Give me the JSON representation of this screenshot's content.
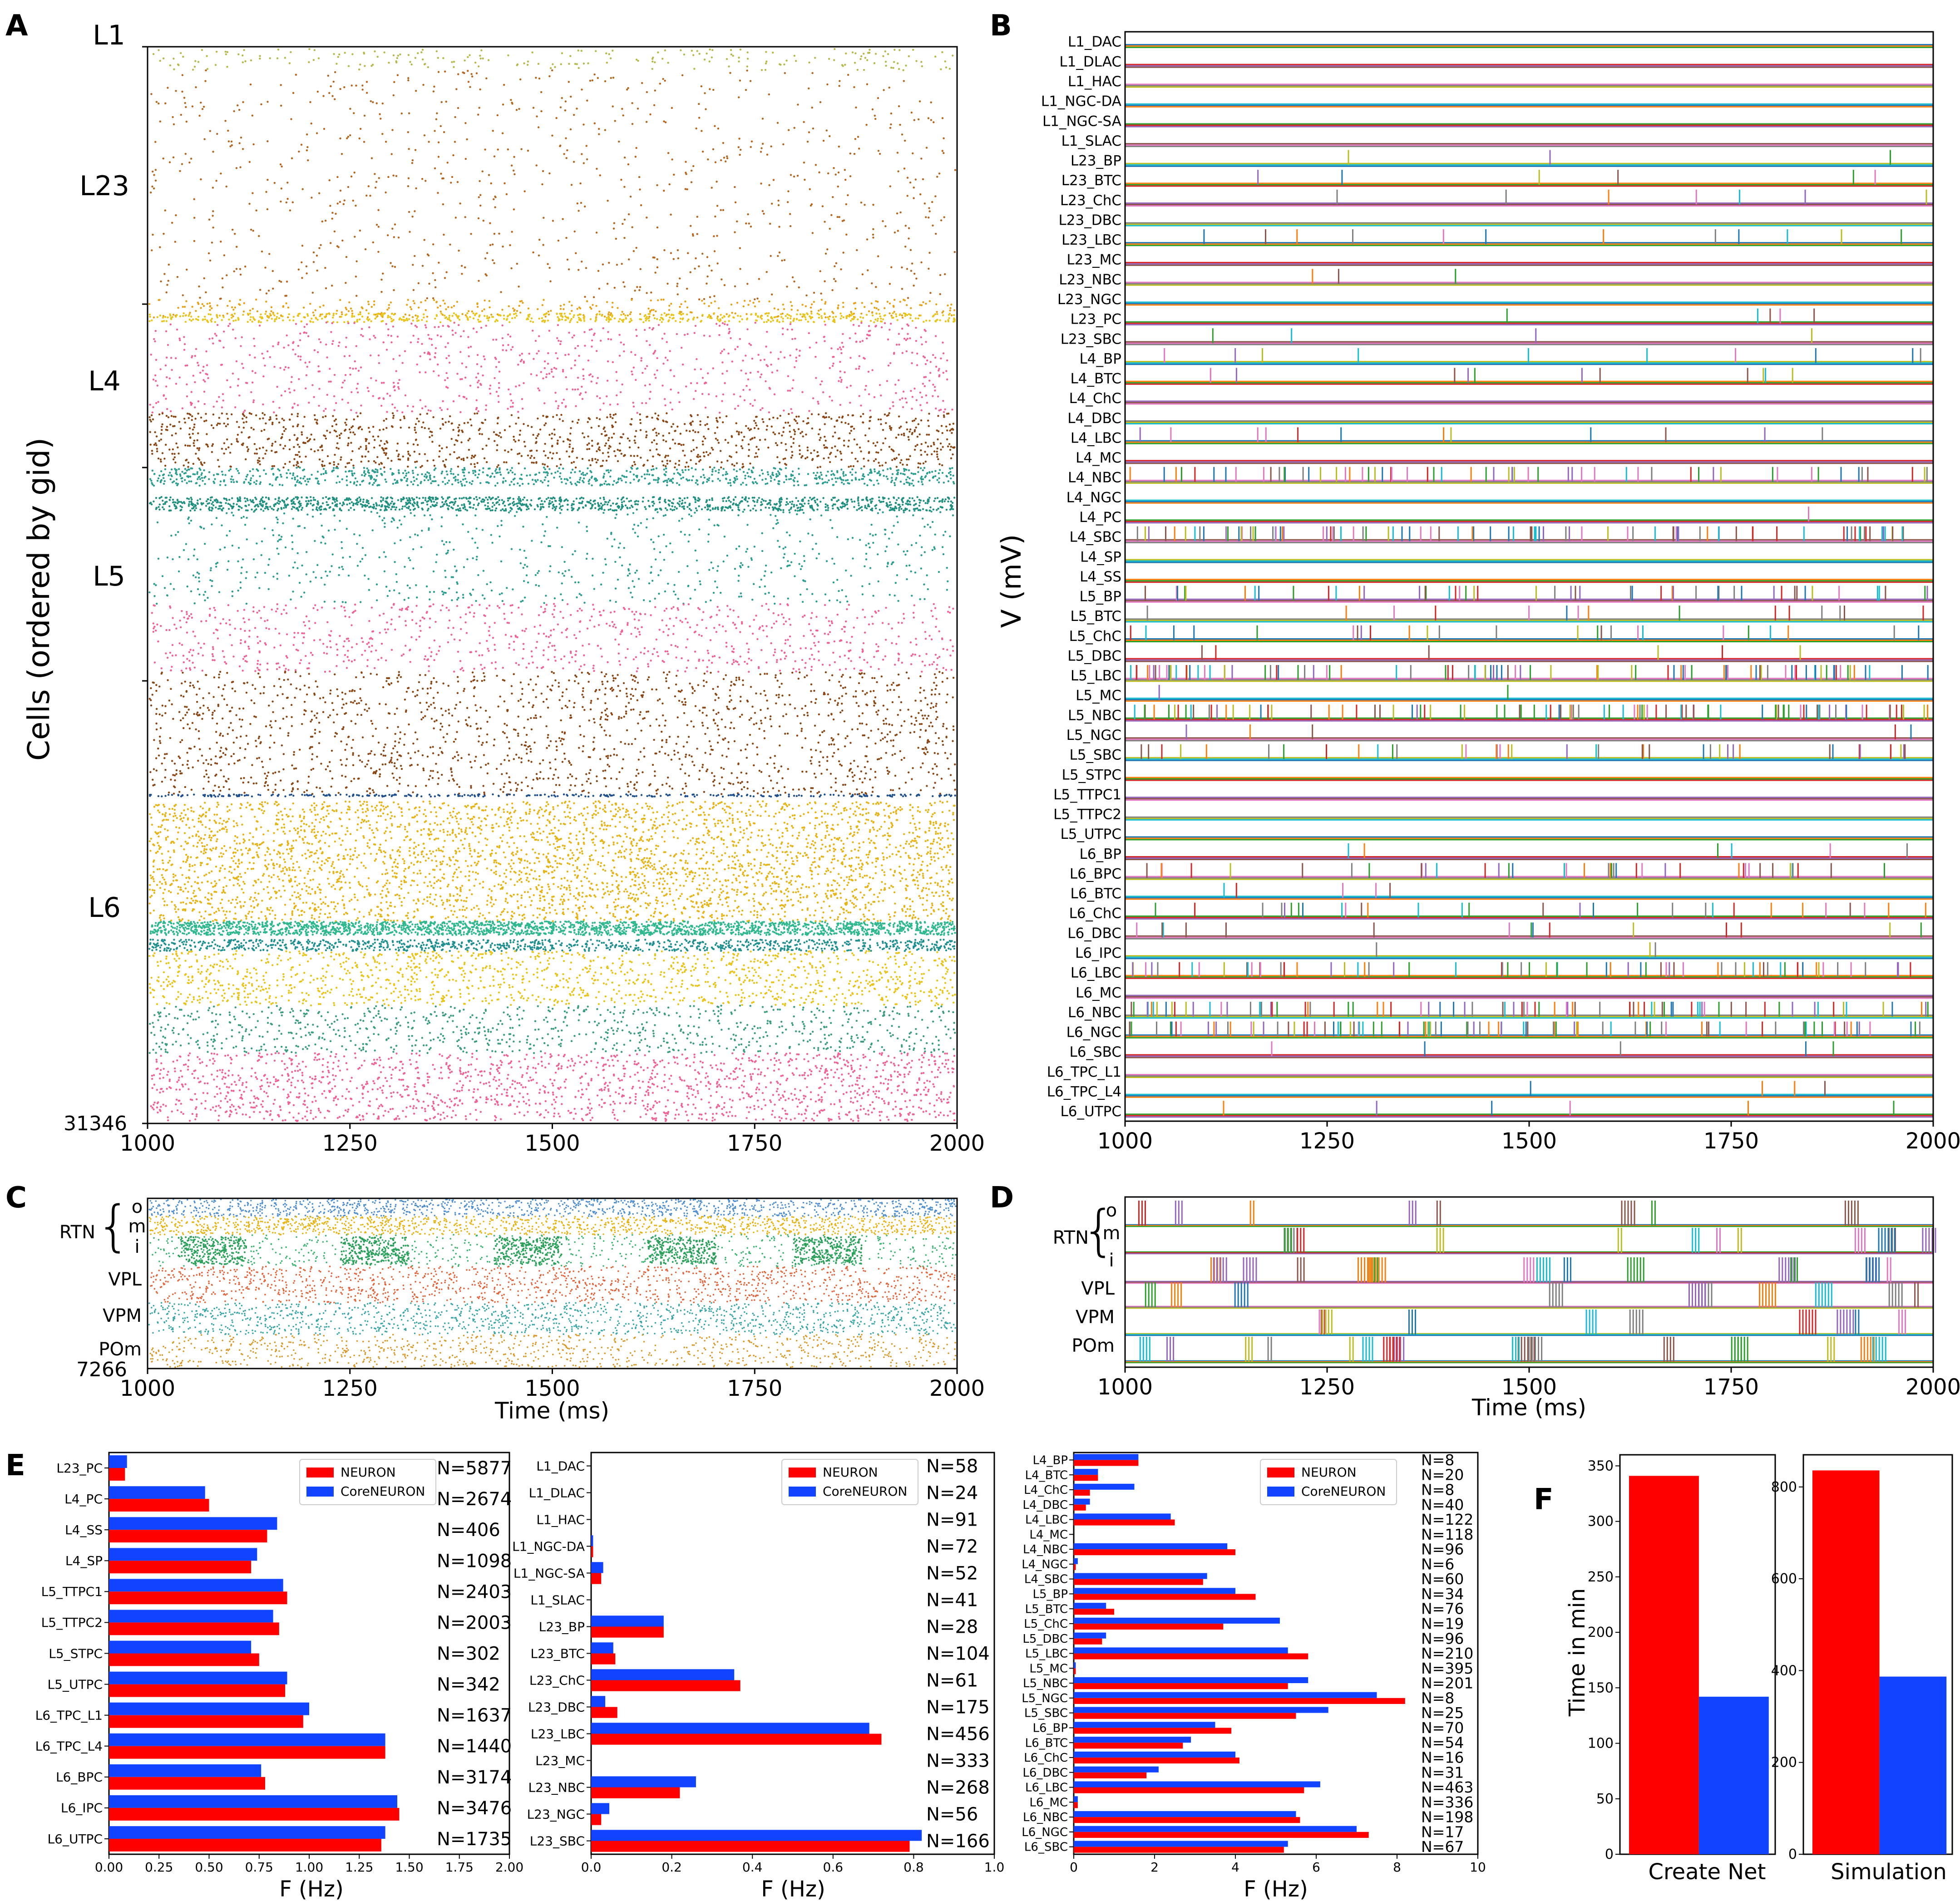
{
  "panel_labels": [
    "A",
    "B",
    "C",
    "D",
    "E",
    "F"
  ],
  "colors": {
    "neuron_red": "#ff0000",
    "coreneuron_blue": "#1144ff",
    "raster_palette": [
      "#b5b84a",
      "#b5651d",
      "#e7a117",
      "#e9c41a",
      "#f06292",
      "#8b4513",
      "#2a9d8f",
      "#1f6f9f",
      "#3cb371",
      "#d4a017",
      "#66bb6a",
      "#e57fa0"
    ],
    "trace_palette": [
      "#1f77b4",
      "#ff7f0e",
      "#2ca02c",
      "#d62728",
      "#9467bd",
      "#8c564b",
      "#e377c2",
      "#7f7f7f",
      "#bcbd22",
      "#17becf"
    ]
  },
  "chart_data": [
    {
      "id": "A",
      "type": "scatter",
      "title": "",
      "xlabel": "",
      "ylabel": "Cells (ordered by gid)",
      "xlim": [
        1000,
        2000
      ],
      "xticks": [
        1000,
        1250,
        1500,
        1750,
        2000
      ],
      "ylim": [
        0,
        31346
      ],
      "ytick_end_label": "31346",
      "layer_labels": [
        "L1",
        "L23",
        "L4",
        "L5",
        "L6"
      ],
      "layer_bounds": [
        0,
        340,
        6900,
        11700,
        22000,
        31346
      ]
    },
    {
      "id": "B",
      "type": "line",
      "ylabel": "V (mV)",
      "xlim": [
        1000,
        2000
      ],
      "xticks": [
        1000,
        1250,
        1500,
        1750,
        2000
      ],
      "categories": [
        "L1_DAC",
        "L1_DLAC",
        "L1_HAC",
        "L1_NGC-DA",
        "L1_NGC-SA",
        "L1_SLAC",
        "L23_BP",
        "L23_BTC",
        "L23_ChC",
        "L23_DBC",
        "L23_LBC",
        "L23_MC",
        "L23_NBC",
        "L23_NGC",
        "L23_PC",
        "L23_SBC",
        "L4_BP",
        "L4_BTC",
        "L4_ChC",
        "L4_DBC",
        "L4_LBC",
        "L4_MC",
        "L4_NBC",
        "L4_NGC",
        "L4_PC",
        "L4_SBC",
        "L4_SP",
        "L4_SS",
        "L5_BP",
        "L5_BTC",
        "L5_ChC",
        "L5_DBC",
        "L5_LBC",
        "L5_MC",
        "L5_NBC",
        "L5_NGC",
        "L5_SBC",
        "L5_STPC",
        "L5_TTPC1",
        "L5_TTPC2",
        "L5_UTPC",
        "L6_BP",
        "L6_BPC",
        "L6_BTC",
        "L6_ChC",
        "L6_DBC",
        "L6_IPC",
        "L6_LBC",
        "L6_MC",
        "L6_NBC",
        "L6_NGC",
        "L6_SBC",
        "L6_TPC_L1",
        "L6_TPC_L4",
        "L6_UTPC"
      ],
      "spike_density": [
        0,
        0,
        0,
        0,
        0,
        0,
        3,
        6,
        7,
        0,
        12,
        0,
        3,
        0,
        5,
        4,
        10,
        11,
        0,
        0,
        12,
        0,
        60,
        0,
        1,
        90,
        0,
        0,
        50,
        15,
        25,
        6,
        90,
        2,
        95,
        5,
        40,
        0,
        0,
        0,
        0,
        6,
        40,
        5,
        30,
        15,
        3,
        70,
        0,
        85,
        95,
        5,
        0,
        4,
        6
      ]
    },
    {
      "id": "C",
      "type": "scatter",
      "xlabel": "Time (ms)",
      "xlim": [
        1000,
        2000
      ],
      "xticks": [
        1000,
        1250,
        1500,
        1750,
        2000
      ],
      "ytick_end_label": "7266",
      "group_labels": [
        "RTN",
        "o",
        "m",
        "i",
        "VPL",
        "VPM",
        "POm"
      ]
    },
    {
      "id": "D",
      "type": "line",
      "xlabel": "Time (ms)",
      "xlim": [
        1000,
        2000
      ],
      "xticks": [
        1000,
        1250,
        1500,
        1750,
        2000
      ],
      "group_labels": [
        "RTN",
        "o",
        "m",
        "i",
        "VPL",
        "VPM",
        "POm"
      ]
    },
    {
      "id": "E1",
      "type": "bar",
      "orientation": "horizontal",
      "xlabel": "F (Hz)",
      "xlim": [
        0,
        2.0
      ],
      "xticks": [
        "0.00",
        "0.25",
        "0.50",
        "0.75",
        "1.00",
        "1.25",
        "1.50",
        "1.75",
        "2.00"
      ],
      "categories": [
        "L23_PC",
        "L4_PC",
        "L4_SS",
        "L4_SP",
        "L5_TTPC1",
        "L5_TTPC2",
        "L5_STPC",
        "L5_UTPC",
        "L6_TPC_L1",
        "L6_TPC_L4",
        "L6_BPC",
        "L6_IPC",
        "L6_UTPC"
      ],
      "counts": [
        "N=5877",
        "N=2674",
        "N=406",
        "N=1098",
        "N=2403",
        "N=2003",
        "N=302",
        "N=342",
        "N=1637",
        "N=1440",
        "N=3174",
        "N=3476",
        "N=1735"
      ],
      "legend": [
        "NEURON",
        "CoreNEURON"
      ],
      "series": [
        {
          "name": "NEURON",
          "values": [
            0.08,
            0.5,
            0.79,
            0.71,
            0.89,
            0.85,
            0.75,
            0.88,
            0.97,
            1.38,
            0.78,
            1.45,
            1.36
          ]
        },
        {
          "name": "CoreNEURON",
          "values": [
            0.09,
            0.48,
            0.84,
            0.74,
            0.87,
            0.82,
            0.71,
            0.89,
            1.0,
            1.38,
            0.76,
            1.44,
            1.38
          ]
        }
      ]
    },
    {
      "id": "E2",
      "type": "bar",
      "orientation": "horizontal",
      "xlabel": "F (Hz)",
      "xlim": [
        0,
        1.0
      ],
      "xticks": [
        "0.0",
        "0.2",
        "0.4",
        "0.6",
        "0.8",
        "1.0"
      ],
      "categories": [
        "L1_DAC",
        "L1_DLAC",
        "L1_HAC",
        "L1_NGC-DA",
        "L1_NGC-SA",
        "L1_SLAC",
        "L23_BP",
        "L23_BTC",
        "L23_ChC",
        "L23_DBC",
        "L23_LBC",
        "L23_MC",
        "L23_NBC",
        "L23_NGC",
        "L23_SBC"
      ],
      "counts": [
        "N=58",
        "N=24",
        "N=91",
        "N=72",
        "N=52",
        "N=41",
        "N=28",
        "N=104",
        "N=61",
        "N=175",
        "N=456",
        "N=333",
        "N=268",
        "N=56",
        "N=166"
      ],
      "legend": [
        "NEURON",
        "CoreNEURON"
      ],
      "series": [
        {
          "name": "NEURON",
          "values": [
            0,
            0,
            0,
            0.005,
            0.025,
            0,
            0.18,
            0.06,
            0.37,
            0.065,
            0.72,
            0,
            0.22,
            0.025,
            0.79
          ]
        },
        {
          "name": "CoreNEURON",
          "values": [
            0,
            0,
            0,
            0.005,
            0.03,
            0,
            0.18,
            0.055,
            0.355,
            0.035,
            0.69,
            0,
            0.26,
            0.045,
            0.82
          ]
        }
      ]
    },
    {
      "id": "E3",
      "type": "bar",
      "orientation": "horizontal",
      "xlabel": "F (Hz)",
      "xlim": [
        0,
        10
      ],
      "xticks": [
        "0",
        "2",
        "4",
        "6",
        "8",
        "10"
      ],
      "categories": [
        "L4_BP",
        "L4_BTC",
        "L4_ChC",
        "L4_DBC",
        "L4_LBC",
        "L4_MC",
        "L4_NBC",
        "L4_NGC",
        "L4_SBC",
        "L5_BP",
        "L5_BTC",
        "L5_ChC",
        "L5_DBC",
        "L5_LBC",
        "L5_MC",
        "L5_NBC",
        "L5_NGC",
        "L5_SBC",
        "L6_BP",
        "L6_BTC",
        "L6_ChC",
        "L6_DBC",
        "L6_LBC",
        "L6_MC",
        "L6_NBC",
        "L6_NGC",
        "L6_SBC"
      ],
      "counts": [
        "N=8",
        "N=20",
        "N=8",
        "N=40",
        "N=122",
        "N=118",
        "N=96",
        "N=6",
        "N=60",
        "N=34",
        "N=76",
        "N=19",
        "N=96",
        "N=210",
        "N=395",
        "N=201",
        "N=8",
        "N=25",
        "N=70",
        "N=54",
        "N=16",
        "N=31",
        "N=463",
        "N=336",
        "N=198",
        "N=17",
        "N=67"
      ],
      "legend": [
        "NEURON",
        "CoreNEURON"
      ],
      "series": [
        {
          "name": "NEURON",
          "values": [
            1.6,
            0.6,
            0.4,
            0.3,
            2.5,
            0,
            4.0,
            0.05,
            3.2,
            4.5,
            1.0,
            3.7,
            0.7,
            5.8,
            0.05,
            5.3,
            8.2,
            5.5,
            3.9,
            2.7,
            4.1,
            1.8,
            5.7,
            0.1,
            5.6,
            7.3,
            5.2
          ]
        },
        {
          "name": "CoreNEURON",
          "values": [
            1.6,
            0.6,
            1.5,
            0.4,
            2.4,
            0,
            3.8,
            0.1,
            3.3,
            4.0,
            0.8,
            5.1,
            0.8,
            5.3,
            0.05,
            5.8,
            7.5,
            6.3,
            3.5,
            2.9,
            4.0,
            2.1,
            6.1,
            0.1,
            5.5,
            7.0,
            5.3
          ]
        }
      ]
    },
    {
      "id": "F",
      "type": "bar",
      "ylabel": "Time in min",
      "panels": [
        {
          "xlabel": "Create Net",
          "ylim": [
            0,
            360
          ],
          "yticks": [
            "0",
            "50",
            "100",
            "150",
            "200",
            "250",
            "300",
            "350"
          ],
          "series": [
            {
              "name": "NEURON",
              "value": 341
            },
            {
              "name": "CoreNEURON",
              "value": 142
            }
          ]
        },
        {
          "xlabel": "Simulation",
          "ylim": [
            0,
            870
          ],
          "yticks": [
            "0",
            "200",
            "400",
            "600",
            "800"
          ],
          "series": [
            {
              "name": "NEURON",
              "value": 836
            },
            {
              "name": "CoreNEURON",
              "value": 387
            }
          ]
        }
      ]
    }
  ]
}
